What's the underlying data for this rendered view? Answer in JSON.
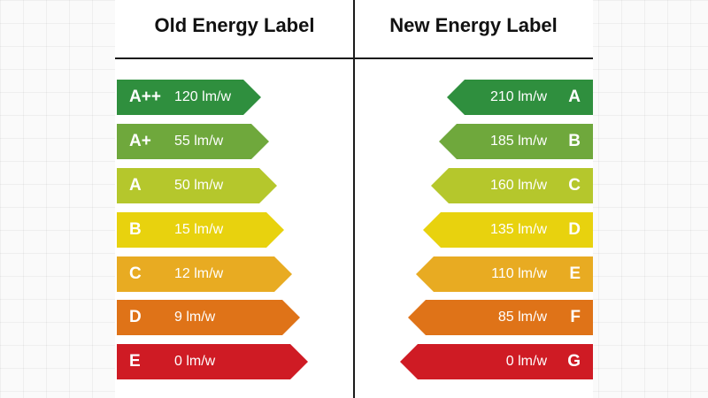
{
  "left": {
    "title": "Old Energy Label",
    "bars": [
      {
        "grade": "A++",
        "value": "120 lm/w",
        "color": "#2f8f3e"
      },
      {
        "grade": "A+",
        "value": "55 lm/w",
        "color": "#6fa83c"
      },
      {
        "grade": "A",
        "value": "50 lm/w",
        "color": "#b5c72c"
      },
      {
        "grade": "B",
        "value": "15 lm/w",
        "color": "#e8d20e"
      },
      {
        "grade": "C",
        "value": "12 lm/w",
        "color": "#e8ab22"
      },
      {
        "grade": "D",
        "value": "9 lm/w",
        "color": "#df7318"
      },
      {
        "grade": "E",
        "value": "0 lm/w",
        "color": "#cf1b24"
      }
    ]
  },
  "right": {
    "title": "New Energy Label",
    "bars": [
      {
        "grade": "A",
        "value": "210 lm/w",
        "color": "#2f8f3e"
      },
      {
        "grade": "B",
        "value": "185 lm/w",
        "color": "#6fa83c"
      },
      {
        "grade": "C",
        "value": "160 lm/w",
        "color": "#b5c72c"
      },
      {
        "grade": "D",
        "value": "135 lm/w",
        "color": "#e8d20e"
      },
      {
        "grade": "E",
        "value": "110 lm/w",
        "color": "#e8ab22"
      },
      {
        "grade": "F",
        "value": "85 lm/w",
        "color": "#df7318"
      },
      {
        "grade": "G",
        "value": "0 lm/w",
        "color": "#cf1b24"
      }
    ]
  }
}
